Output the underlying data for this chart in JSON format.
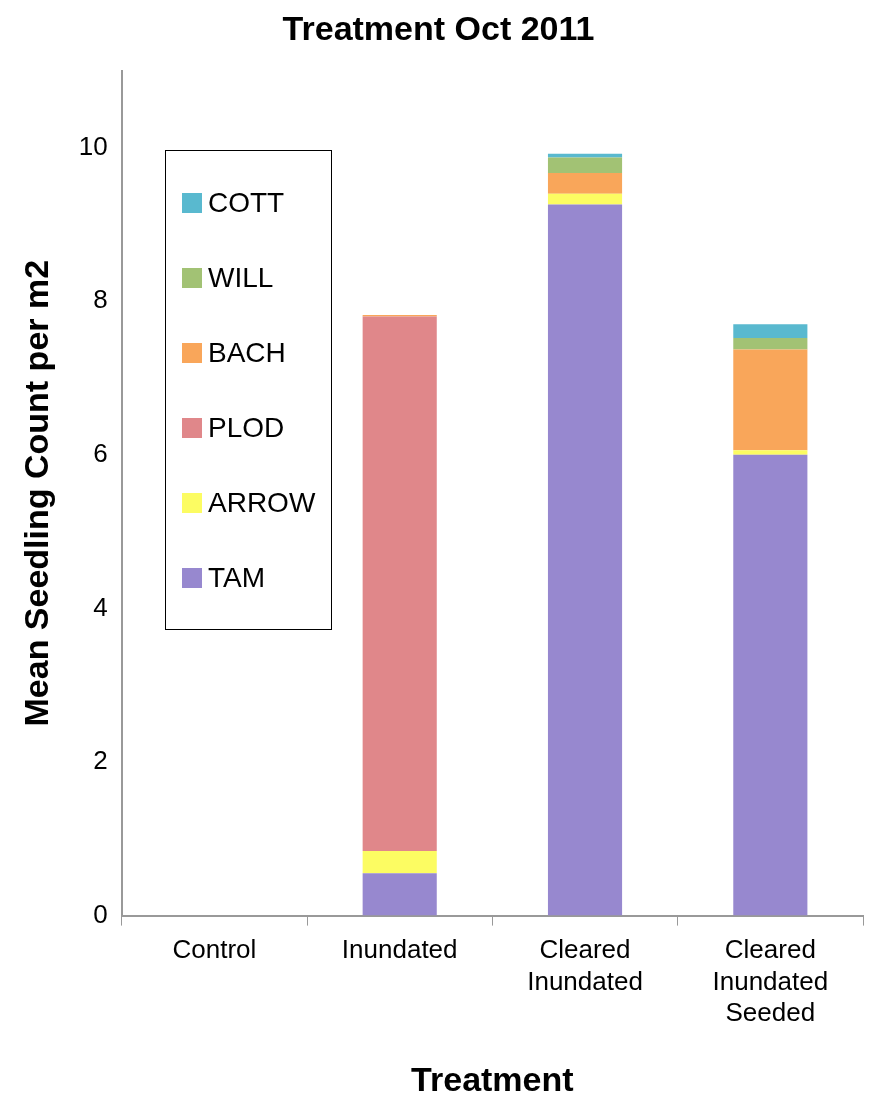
{
  "chart_data": {
    "type": "bar",
    "title": "Treatment Oct 2011",
    "xlabel": "Treatment",
    "ylabel": "Mean Seedling Count per m2",
    "categories": [
      "Control",
      "Inundated",
      "Cleared Inundated",
      "Cleared Inundated Seeded"
    ],
    "stacked": true,
    "ylim": [
      0,
      11
    ],
    "yticks": [
      0,
      2,
      4,
      6,
      8,
      10
    ],
    "grid": false,
    "legend": "top left",
    "series": [
      {
        "name": "TAM",
        "color": "#9788cf",
        "values": [
          0,
          0.55,
          9.26,
          6.0
        ]
      },
      {
        "name": "ARROW",
        "color": "#fcfc62",
        "values": [
          0,
          0.29,
          0.14,
          0.06
        ]
      },
      {
        "name": "PLOD",
        "color": "#e0878a",
        "values": [
          0,
          6.96,
          0,
          0
        ]
      },
      {
        "name": "BACH",
        "color": "#f9a65a",
        "values": [
          0,
          0.02,
          0.27,
          1.31
        ]
      },
      {
        "name": "WILL",
        "color": "#a2c274",
        "values": [
          0,
          0,
          0.2,
          0.15
        ]
      },
      {
        "name": "COTT",
        "color": "#59b9cf",
        "values": [
          0,
          0,
          0.05,
          0.18
        ]
      }
    ]
  }
}
